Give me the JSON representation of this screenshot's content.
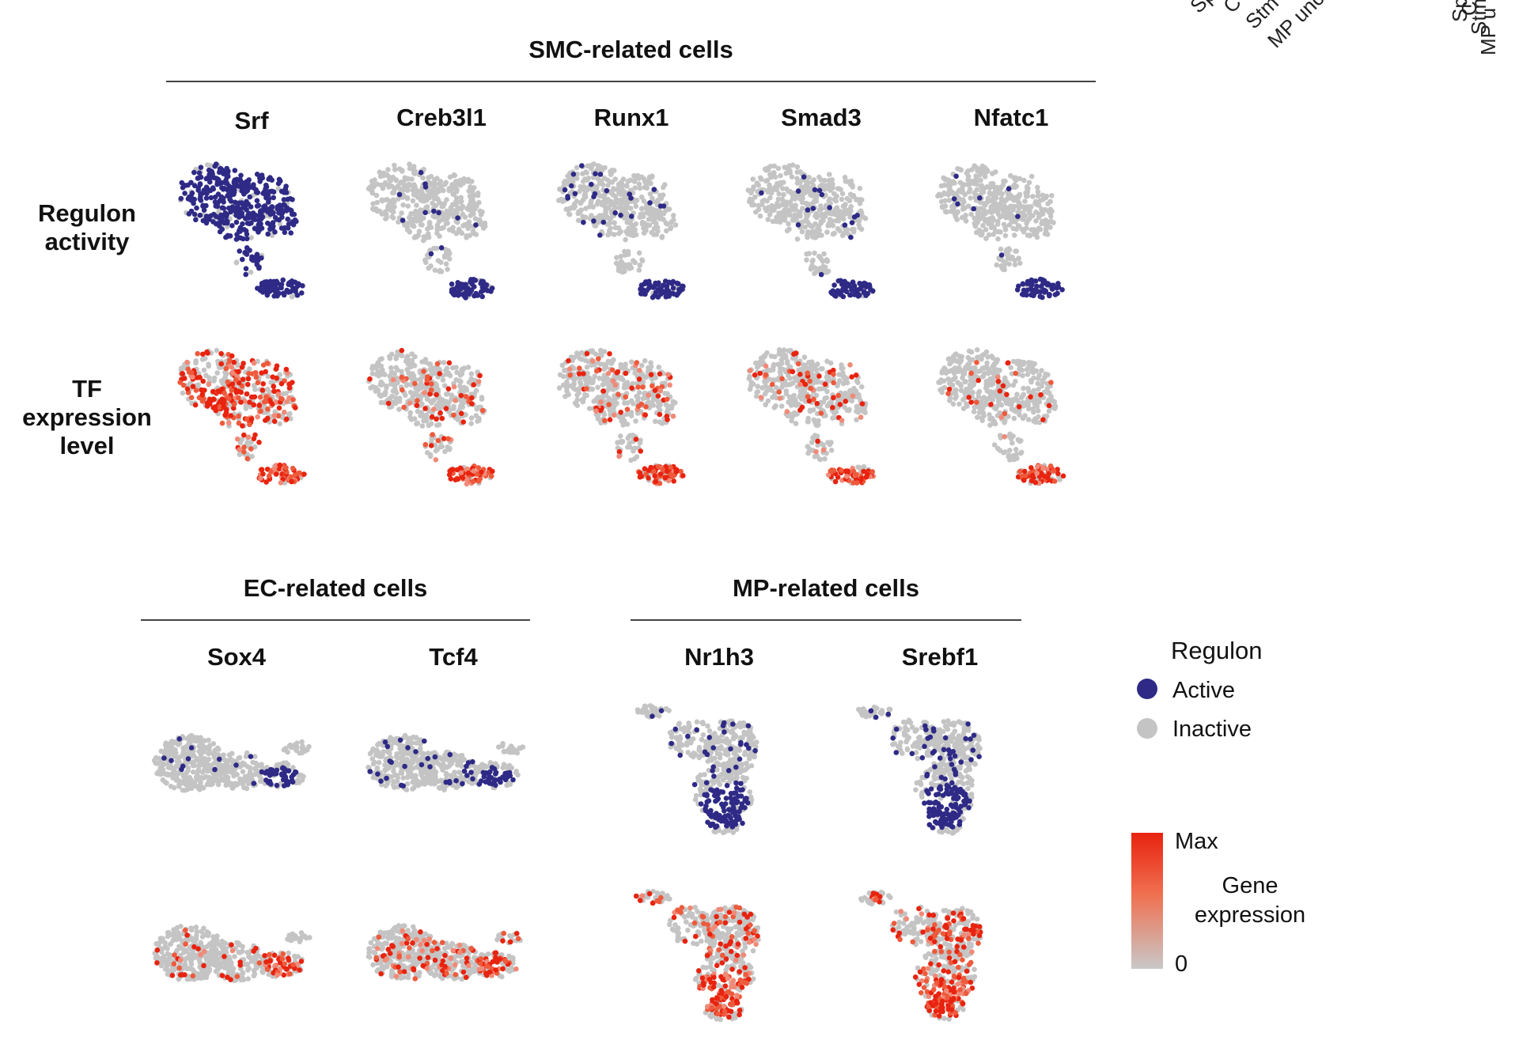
{
  "groups": {
    "smc": "SMC-related cells",
    "ec": "EC-related cells",
    "mp": "MP-related cells"
  },
  "row_labels": {
    "regulon": [
      "Regulon",
      "activity"
    ],
    "tf": [
      "TF",
      "expression",
      "level"
    ]
  },
  "genes": {
    "smc": [
      "Srf",
      "Creb3l1",
      "Runx1",
      "Smad3",
      "Nfatc1"
    ],
    "ec": [
      "Sox4",
      "Tcf4"
    ],
    "mp": [
      "Nr1h3",
      "Srebf1"
    ]
  },
  "legend": {
    "regulon_title": "Regulon",
    "active": "Active",
    "inactive": "Inactive",
    "max": "Max",
    "expression_title": [
      "Gene",
      "expression"
    ],
    "zero": "0"
  },
  "cropped_labels": {
    "a": [
      "Sp",
      "C",
      "Stm",
      "MP unc"
    ],
    "b": [
      "Sp",
      "C",
      "Stm",
      "MP u"
    ]
  },
  "colors": {
    "active": "#2e2a86",
    "inactive": "#c4c4c4",
    "expr_max": "#e8230f",
    "expr_zero": "#c8c8c8"
  },
  "active_fraction": {
    "Srf": 0.85,
    "Creb3l1": 0.2,
    "Runx1": 0.25,
    "Smad3": 0.2,
    "Nfatc1": 0.08,
    "Sox4": 0.15,
    "Tcf4": 0.3,
    "Nr1h3": 0.35,
    "Srebf1": 0.45
  }
}
